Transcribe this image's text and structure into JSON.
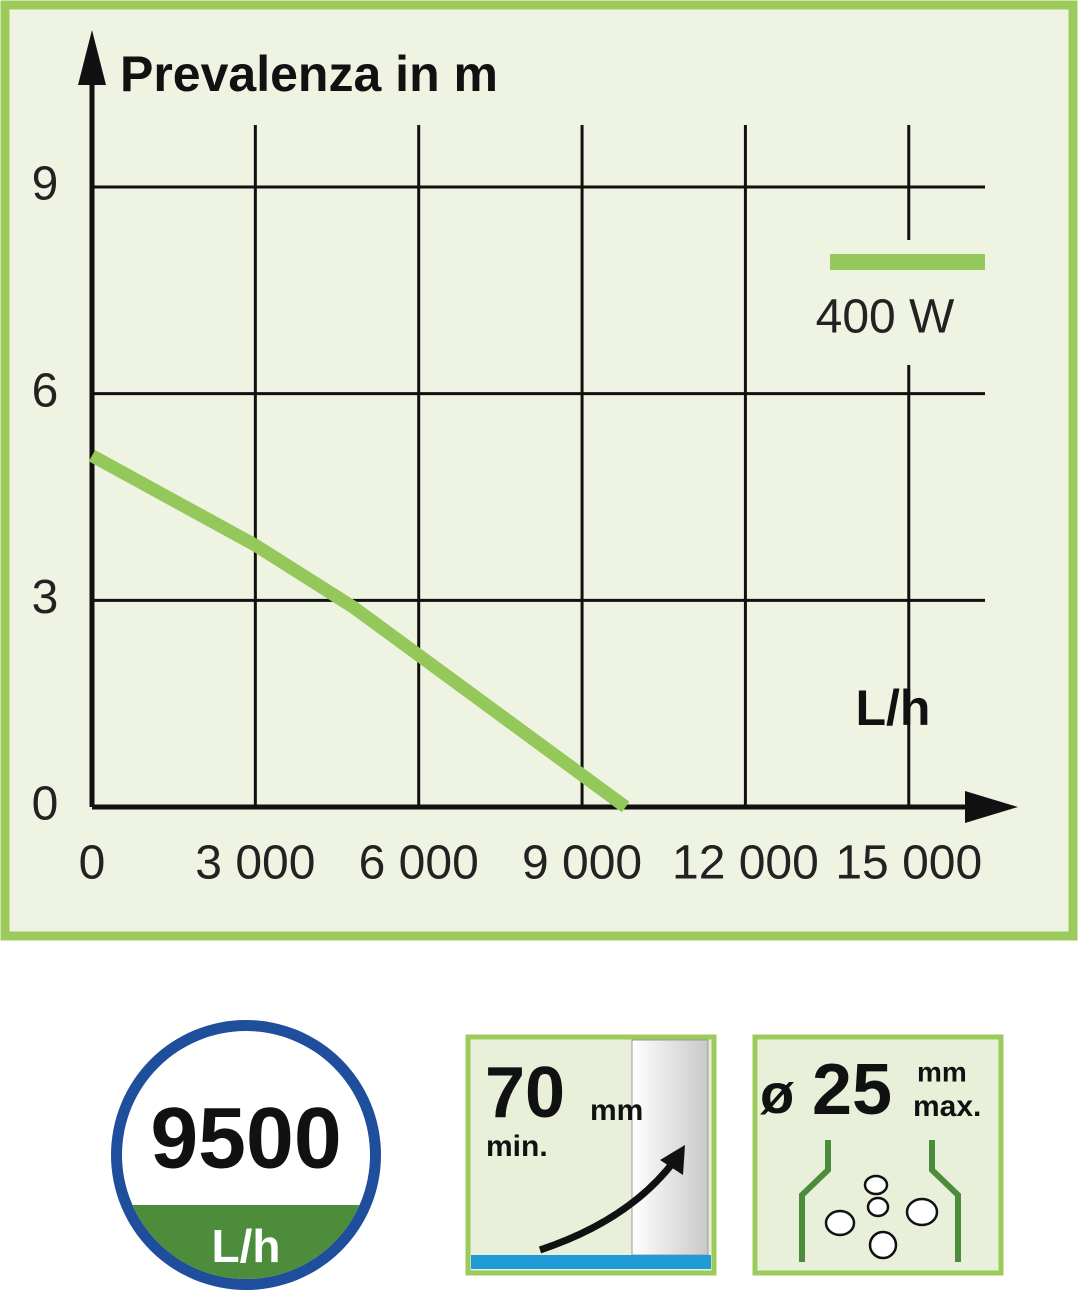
{
  "chart_data": {
    "type": "line",
    "title": "Prevalenza in m",
    "x_label": "L/h",
    "x": [
      0,
      3000,
      4800,
      9800
    ],
    "series": [
      {
        "name": "400 W",
        "color": "#95c85a",
        "values": [
          5.1,
          3.8,
          2.9,
          0
        ]
      }
    ],
    "xlim": [
      0,
      16400
    ],
    "ylim": [
      0,
      9.9
    ],
    "xticks": [
      0,
      {
        "value": 3000,
        "label": "3 000"
      },
      {
        "value": 6000,
        "label": "6 000"
      },
      {
        "value": 9000,
        "label": "9 000"
      },
      {
        "value": 12000,
        "label": "12 000"
      },
      {
        "value": 15000,
        "label": "15 000"
      }
    ],
    "yticks": [
      0,
      3,
      6,
      9
    ],
    "grid": true,
    "legend": "upper right"
  },
  "icons": {
    "flow": {
      "value": "9500",
      "unit": "L/h"
    },
    "depth": {
      "value": "70",
      "unit": "mm",
      "note": "min."
    },
    "particle": {
      "symbol": "ø",
      "value": "25",
      "unit": "mm",
      "note": "max."
    }
  }
}
